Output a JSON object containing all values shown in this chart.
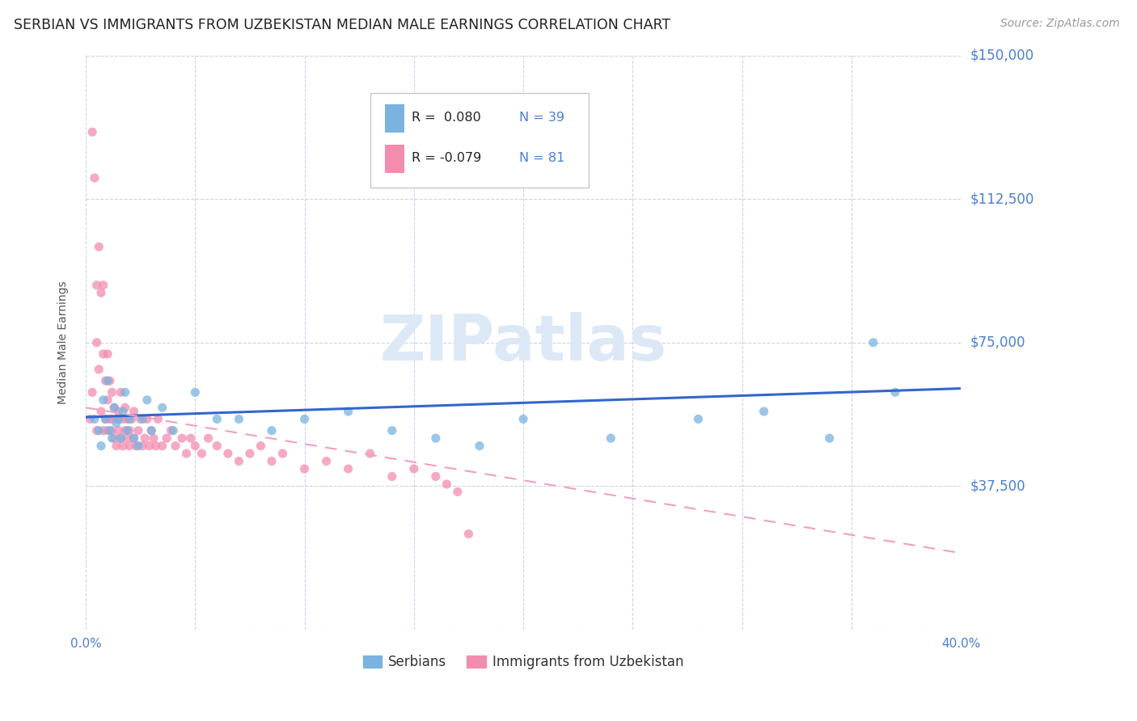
{
  "title": "SERBIAN VS IMMIGRANTS FROM UZBEKISTAN MEDIAN MALE EARNINGS CORRELATION CHART",
  "source": "Source: ZipAtlas.com",
  "ylabel": "Median Male Earnings",
  "xlim": [
    0.0,
    0.4
  ],
  "ylim": [
    0,
    150000
  ],
  "yticks": [
    0,
    37500,
    75000,
    112500,
    150000
  ],
  "ytick_labels": [
    "",
    "$37,500",
    "$75,000",
    "$112,500",
    "$150,000"
  ],
  "xtick_labels_show": [
    "0.0%",
    "40.0%"
  ],
  "title_color": "#222222",
  "tick_color": "#4a7fd4",
  "grid_color": "#c8cfe8",
  "legend_r1": "R =  0.080",
  "legend_n1": "N = 39",
  "legend_r2": "R = -0.079",
  "legend_n2": "N = 81",
  "series1_color": "#7ab3e0",
  "series2_color": "#f48cb0",
  "trendline1_color": "#3366cc",
  "trendline2_color": "#f0a0be",
  "serbian_x": [
    0.004,
    0.006,
    0.007,
    0.008,
    0.009,
    0.01,
    0.011,
    0.012,
    0.013,
    0.014,
    0.015,
    0.016,
    0.017,
    0.018,
    0.019,
    0.02,
    0.022,
    0.024,
    0.026,
    0.028,
    0.03,
    0.035,
    0.04,
    0.05,
    0.06,
    0.07,
    0.085,
    0.1,
    0.12,
    0.14,
    0.16,
    0.18,
    0.2,
    0.24,
    0.28,
    0.31,
    0.34,
    0.36,
    0.37
  ],
  "serbian_y": [
    55000,
    52000,
    48000,
    60000,
    55000,
    65000,
    52000,
    50000,
    58000,
    54000,
    55000,
    50000,
    57000,
    62000,
    52000,
    55000,
    50000,
    48000,
    55000,
    60000,
    52000,
    58000,
    52000,
    62000,
    55000,
    55000,
    52000,
    55000,
    57000,
    52000,
    50000,
    48000,
    55000,
    50000,
    55000,
    57000,
    50000,
    75000,
    62000
  ],
  "uzbek_x": [
    0.002,
    0.003,
    0.003,
    0.004,
    0.005,
    0.005,
    0.005,
    0.006,
    0.006,
    0.007,
    0.007,
    0.008,
    0.008,
    0.008,
    0.009,
    0.009,
    0.01,
    0.01,
    0.01,
    0.011,
    0.011,
    0.012,
    0.012,
    0.012,
    0.013,
    0.013,
    0.014,
    0.014,
    0.015,
    0.015,
    0.016,
    0.016,
    0.017,
    0.017,
    0.018,
    0.018,
    0.019,
    0.019,
    0.02,
    0.02,
    0.021,
    0.022,
    0.022,
    0.023,
    0.024,
    0.025,
    0.026,
    0.027,
    0.028,
    0.029,
    0.03,
    0.031,
    0.032,
    0.033,
    0.035,
    0.037,
    0.039,
    0.041,
    0.044,
    0.046,
    0.048,
    0.05,
    0.053,
    0.056,
    0.06,
    0.065,
    0.07,
    0.075,
    0.08,
    0.085,
    0.09,
    0.1,
    0.11,
    0.12,
    0.13,
    0.14,
    0.15,
    0.16,
    0.165,
    0.17,
    0.175
  ],
  "uzbek_y": [
    55000,
    130000,
    62000,
    118000,
    75000,
    90000,
    52000,
    100000,
    68000,
    88000,
    57000,
    72000,
    90000,
    52000,
    65000,
    55000,
    60000,
    52000,
    72000,
    55000,
    65000,
    52000,
    62000,
    55000,
    58000,
    50000,
    55000,
    48000,
    57000,
    52000,
    62000,
    50000,
    55000,
    48000,
    52000,
    58000,
    50000,
    55000,
    52000,
    48000,
    55000,
    50000,
    57000,
    48000,
    52000,
    55000,
    48000,
    50000,
    55000,
    48000,
    52000,
    50000,
    48000,
    55000,
    48000,
    50000,
    52000,
    48000,
    50000,
    46000,
    50000,
    48000,
    46000,
    50000,
    48000,
    46000,
    44000,
    46000,
    48000,
    44000,
    46000,
    42000,
    44000,
    42000,
    46000,
    40000,
    42000,
    40000,
    38000,
    36000,
    25000
  ],
  "trendline1_x0": 0.0,
  "trendline1_y0": 55500,
  "trendline1_x1": 0.4,
  "trendline1_y1": 63000,
  "trendline2_x0": 0.0,
  "trendline2_y0": 58000,
  "trendline2_x1": 0.4,
  "trendline2_y1": 20000
}
